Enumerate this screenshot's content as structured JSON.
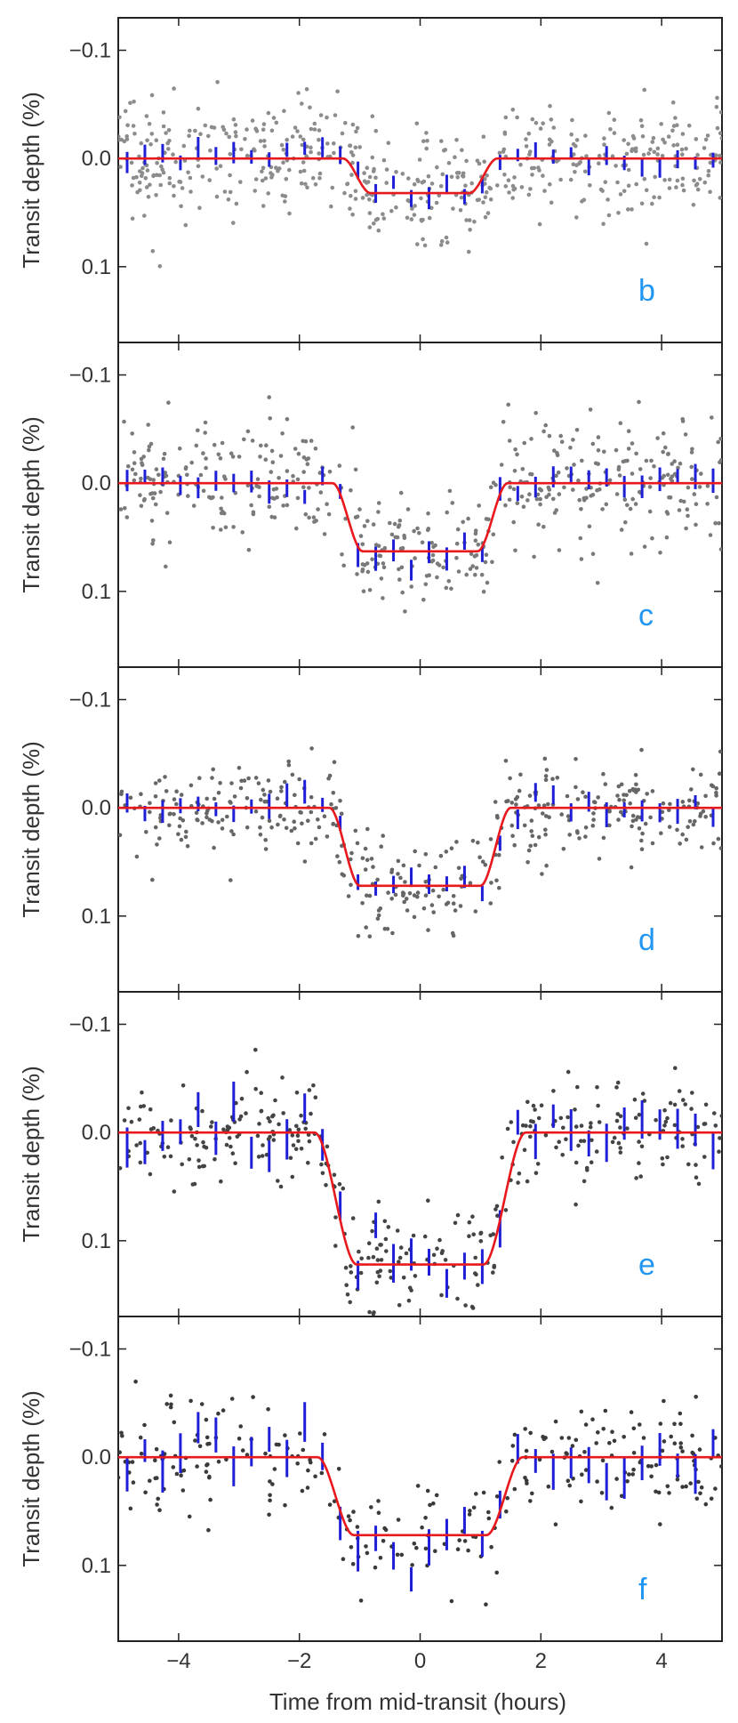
{
  "figure": {
    "xlabel": "Time from mid-transit (hours)",
    "ylabel": "Transit depth (%)"
  },
  "chart_data": [
    {
      "type": "scatter",
      "panel": "b",
      "xlabel": "",
      "ylabel": "Transit depth (%)",
      "xlim": [
        -5,
        5
      ],
      "ylim": [
        0.17,
        -0.13
      ],
      "ytick_values": [
        -0.1,
        0.0,
        0.1
      ],
      "yticks": [
        "−0.1",
        "0.0",
        "0.1"
      ],
      "xticks": [],
      "depth": 0.032,
      "t_full": 0.82,
      "t_total": 1.28,
      "scatter_sd": 0.028,
      "bin_err": 0.008,
      "seed": 11,
      "colors": {
        "points": "#8c8c8c",
        "bins": "#1f1fd8",
        "model": "#e8181c",
        "letter": "#2196f3"
      }
    },
    {
      "type": "scatter",
      "panel": "c",
      "xlabel": "",
      "ylabel": "Transit depth (%)",
      "xlim": [
        -5,
        5
      ],
      "ylim": [
        0.17,
        -0.13
      ],
      "ytick_values": [
        -0.1,
        0.0,
        0.1
      ],
      "yticks": [
        "−0.1",
        "0.0",
        "0.1"
      ],
      "xticks": [],
      "depth": 0.063,
      "t_full": 0.95,
      "t_total": 1.45,
      "scatter_sd": 0.027,
      "bin_err": 0.009,
      "seed": 23,
      "colors": {
        "points": "#7a7a7a",
        "bins": "#1f1fd8",
        "model": "#e8181c",
        "letter": "#2196f3"
      }
    },
    {
      "type": "scatter",
      "panel": "d",
      "xlabel": "",
      "ylabel": "Transit depth (%)",
      "xlim": [
        -5,
        5
      ],
      "ylim": [
        0.17,
        -0.13
      ],
      "ytick_values": [
        -0.1,
        0.0,
        0.1
      ],
      "yticks": [
        "−0.1",
        "0.0",
        "0.1"
      ],
      "xticks": [],
      "depth": 0.072,
      "t_full": 1.0,
      "t_total": 1.5,
      "scatter_sd": 0.022,
      "bin_err": 0.009,
      "seed": 37,
      "colors": {
        "points": "#666666",
        "bins": "#1f1fd8",
        "model": "#e8181c",
        "letter": "#2196f3"
      }
    },
    {
      "type": "scatter",
      "panel": "e",
      "xlabel": "",
      "ylabel": "Transit depth (%)",
      "xlim": [
        -5,
        5
      ],
      "ylim": [
        0.17,
        -0.13
      ],
      "ytick_values": [
        -0.1,
        0.0,
        0.1
      ],
      "yticks": [
        "−0.1",
        "0.0",
        "0.1"
      ],
      "xticks": [],
      "depth": 0.122,
      "t_full": 1.05,
      "t_total": 1.75,
      "scatter_sd": 0.024,
      "bin_err": 0.015,
      "seed": 51,
      "colors": {
        "points": "#444444",
        "bins": "#1f1fd8",
        "model": "#e8181c",
        "letter": "#2196f3"
      }
    },
    {
      "type": "scatter",
      "panel": "f",
      "xlabel": "Time from mid-transit (hours)",
      "ylabel": "Transit depth (%)",
      "xlim": [
        -5,
        5
      ],
      "ylim": [
        0.17,
        -0.13
      ],
      "ytick_values": [
        -0.1,
        0.0,
        0.1
      ],
      "yticks": [
        "−0.1",
        "0.0",
        "0.1"
      ],
      "xticks": [
        "−4",
        "−2",
        "0",
        "2",
        "4"
      ],
      "xtick_values": [
        -4,
        -2,
        0,
        2,
        4
      ],
      "depth": 0.072,
      "t_full": 1.1,
      "t_total": 1.7,
      "scatter_sd": 0.024,
      "bin_err": 0.015,
      "seed": 67,
      "colors": {
        "points": "#3a3a3a",
        "bins": "#1f1fd8",
        "model": "#e8181c",
        "letter": "#2196f3"
      }
    }
  ]
}
